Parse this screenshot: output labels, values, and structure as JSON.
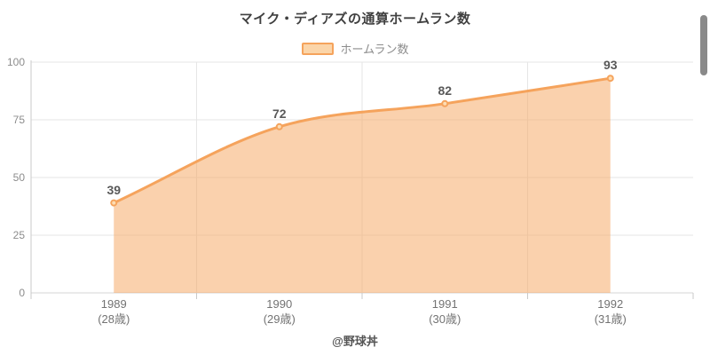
{
  "page": {
    "footer": "@野球丼"
  },
  "chart_data": {
    "type": "area",
    "title": "マイク・ディアズの通算ホームラン数",
    "legend_label": "ホームラン数",
    "legend_position": "top",
    "categories": [
      "1989",
      "1990",
      "1991",
      "1992"
    ],
    "category_sublabels": [
      "(28歳)",
      "(29歳)",
      "(30歳)",
      "(31歳)"
    ],
    "series": [
      {
        "name": "ホームラン数",
        "values": [
          39,
          72,
          82,
          93
        ]
      }
    ],
    "data_labels_shown": true,
    "smooth": true,
    "grid": true,
    "xlabel": "",
    "ylabel": "",
    "ylim": [
      0,
      100
    ],
    "yticks": [
      0,
      25,
      50,
      75,
      100
    ],
    "colors": {
      "line": "#f5a35c",
      "fill": "#f5a35c",
      "fill_opacity": 0.5,
      "marker_fill": "#fdddb3",
      "gridline": "#e6e6e6",
      "axis_line": "#c9c9c9",
      "baseline": "#d4d4d4",
      "title_text": "#404040",
      "tick_text": "#8c8c8c",
      "xlabel_text": "#737373",
      "datalabel_text": "#595959",
      "legend_text": "#8c8c8c"
    }
  }
}
